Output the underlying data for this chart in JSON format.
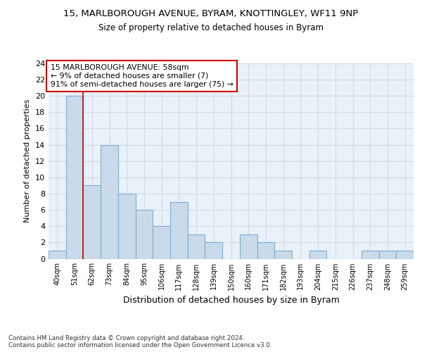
{
  "title_line1": "15, MARLBOROUGH AVENUE, BYRAM, KNOTTINGLEY, WF11 9NP",
  "title_line2": "Size of property relative to detached houses in Byram",
  "xlabel": "Distribution of detached houses by size in Byram",
  "ylabel": "Number of detached properties",
  "categories": [
    "40sqm",
    "51sqm",
    "62sqm",
    "73sqm",
    "84sqm",
    "95sqm",
    "106sqm",
    "117sqm",
    "128sqm",
    "139sqm",
    "150sqm",
    "160sqm",
    "171sqm",
    "182sqm",
    "193sqm",
    "204sqm",
    "215sqm",
    "226sqm",
    "237sqm",
    "248sqm",
    "259sqm"
  ],
  "values": [
    1,
    20,
    9,
    14,
    8,
    6,
    4,
    7,
    3,
    2,
    0,
    3,
    2,
    1,
    0,
    1,
    0,
    0,
    1,
    1,
    1
  ],
  "bar_color": "#c9daea",
  "bar_edgecolor": "#7bafd4",
  "red_line_x": 1.5,
  "annotation_line1": "15 MARLBOROUGH AVENUE: 58sqm",
  "annotation_line2": "← 9% of detached houses are smaller (7)",
  "annotation_line3": "91% of semi-detached houses are larger (75) →",
  "annotation_box_color": "#ffffff",
  "annotation_box_edgecolor": "#cc0000",
  "footer_text": "Contains HM Land Registry data © Crown copyright and database right 2024.\nContains public sector information licensed under the Open Government Licence v3.0.",
  "ylim": [
    0,
    24
  ],
  "yticks": [
    0,
    2,
    4,
    6,
    8,
    10,
    12,
    14,
    16,
    18,
    20,
    22,
    24
  ],
  "grid_color": "#d0dce8",
  "background_color": "#eaf1f8",
  "fig_background": "#ffffff"
}
